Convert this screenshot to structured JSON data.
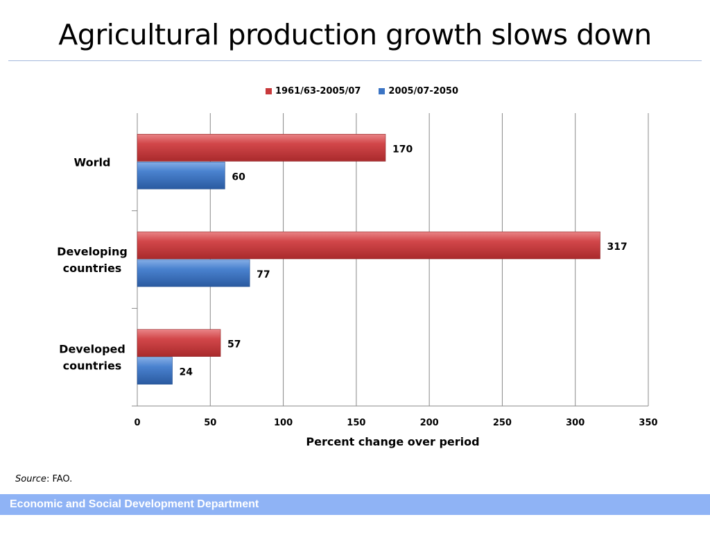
{
  "slide": {
    "title": "Agricultural production growth slows down",
    "source_label": "Source",
    "source_text": ": FAO.",
    "footer": "Economic and Social Development Department"
  },
  "colors": {
    "series_1": "#c8393b",
    "series_2": "#3b74c4",
    "grid": "#888888",
    "title_rule": "#a3b8dc",
    "footer_band": "#8fb3f5"
  },
  "chart_data": {
    "type": "bar",
    "orientation": "horizontal",
    "title": "",
    "xlabel": "Percent change over period",
    "ylabel": "",
    "xlim": [
      0,
      350
    ],
    "x_ticks": [
      0,
      50,
      100,
      150,
      200,
      250,
      300,
      350
    ],
    "grid": true,
    "legend_position": "top",
    "categories": [
      "World",
      "Developing countries",
      "Developed countries"
    ],
    "category_lines": [
      [
        "World"
      ],
      [
        "Developing",
        "countries"
      ],
      [
        "Developed",
        "countries"
      ]
    ],
    "series": [
      {
        "name": "1961/63-2005/07",
        "color": "#c8393b",
        "values": [
          170,
          317,
          57
        ]
      },
      {
        "name": "2005/07-2050",
        "color": "#3b74c4",
        "values": [
          60,
          77,
          24
        ]
      }
    ]
  }
}
